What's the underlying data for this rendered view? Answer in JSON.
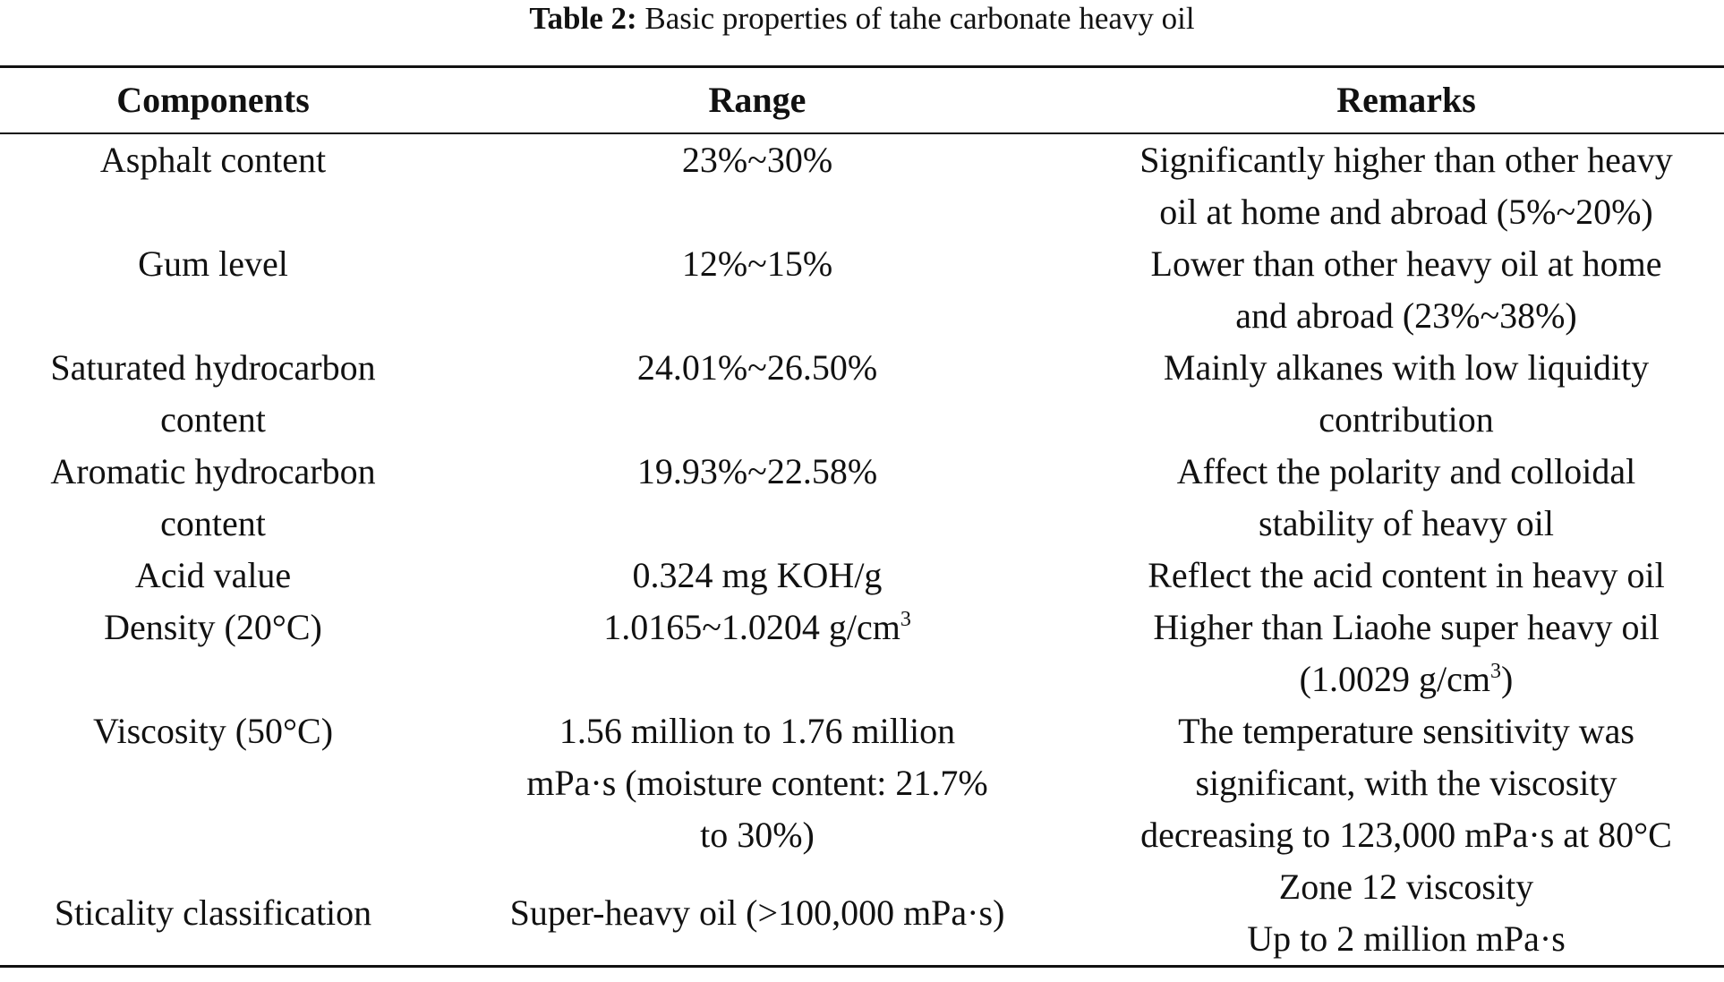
{
  "caption": {
    "label": "Table 2:",
    "text": "Basic properties of tahe carbonate heavy oil"
  },
  "table": {
    "headers": [
      "Components",
      "Range",
      "Remarks"
    ],
    "rows": [
      {
        "component": [
          "Asphalt content"
        ],
        "range": [
          "23%~30%"
        ],
        "remarks": [
          "Significantly higher than other heavy",
          "oil at home and abroad (5%~20%)"
        ]
      },
      {
        "component": [
          "Gum level"
        ],
        "range": [
          "12%~15%"
        ],
        "remarks": [
          "Lower than other heavy oil at home",
          "and abroad (23%~38%)"
        ]
      },
      {
        "component": [
          "Saturated hydrocarbon",
          "content"
        ],
        "range": [
          "24.01%~26.50%"
        ],
        "remarks": [
          "Mainly alkanes with low liquidity",
          "contribution"
        ]
      },
      {
        "component": [
          "Aromatic hydrocarbon",
          "content"
        ],
        "range": [
          "19.93%~22.58%"
        ],
        "remarks": [
          "Affect the polarity and colloidal",
          "stability of heavy oil"
        ]
      },
      {
        "component": [
          "Acid value"
        ],
        "range": [
          "0.324 mg KOH/g"
        ],
        "remarks": [
          "Reflect the acid content in heavy oil"
        ]
      },
      {
        "component": [
          "Density (20°C)"
        ],
        "range": [
          "1.0165~1.0204 g/cm"
        ],
        "range_sup": "3",
        "remarks": [
          "Higher than Liaohe super heavy oil",
          "(1.0029 g/cm"
        ],
        "remarks_sup": "3",
        "remarks_tail": ")"
      },
      {
        "component": [
          "Viscosity (50°C)"
        ],
        "range": [
          "1.56 million to 1.76 million",
          "mPa·s (moisture content: 21.7%",
          "to 30%)"
        ],
        "remarks": [
          "The temperature sensitivity was",
          "significant, with the viscosity",
          "decreasing to 123,000 mPa·s at 80°C"
        ]
      },
      {
        "component": [
          "Sticality classification"
        ],
        "range": [
          "Super-heavy oil (>100,000 mPa·s)"
        ],
        "remarks": [
          "Zone 12 viscosity",
          "Up to 2 million mPa·s"
        ]
      }
    ]
  }
}
